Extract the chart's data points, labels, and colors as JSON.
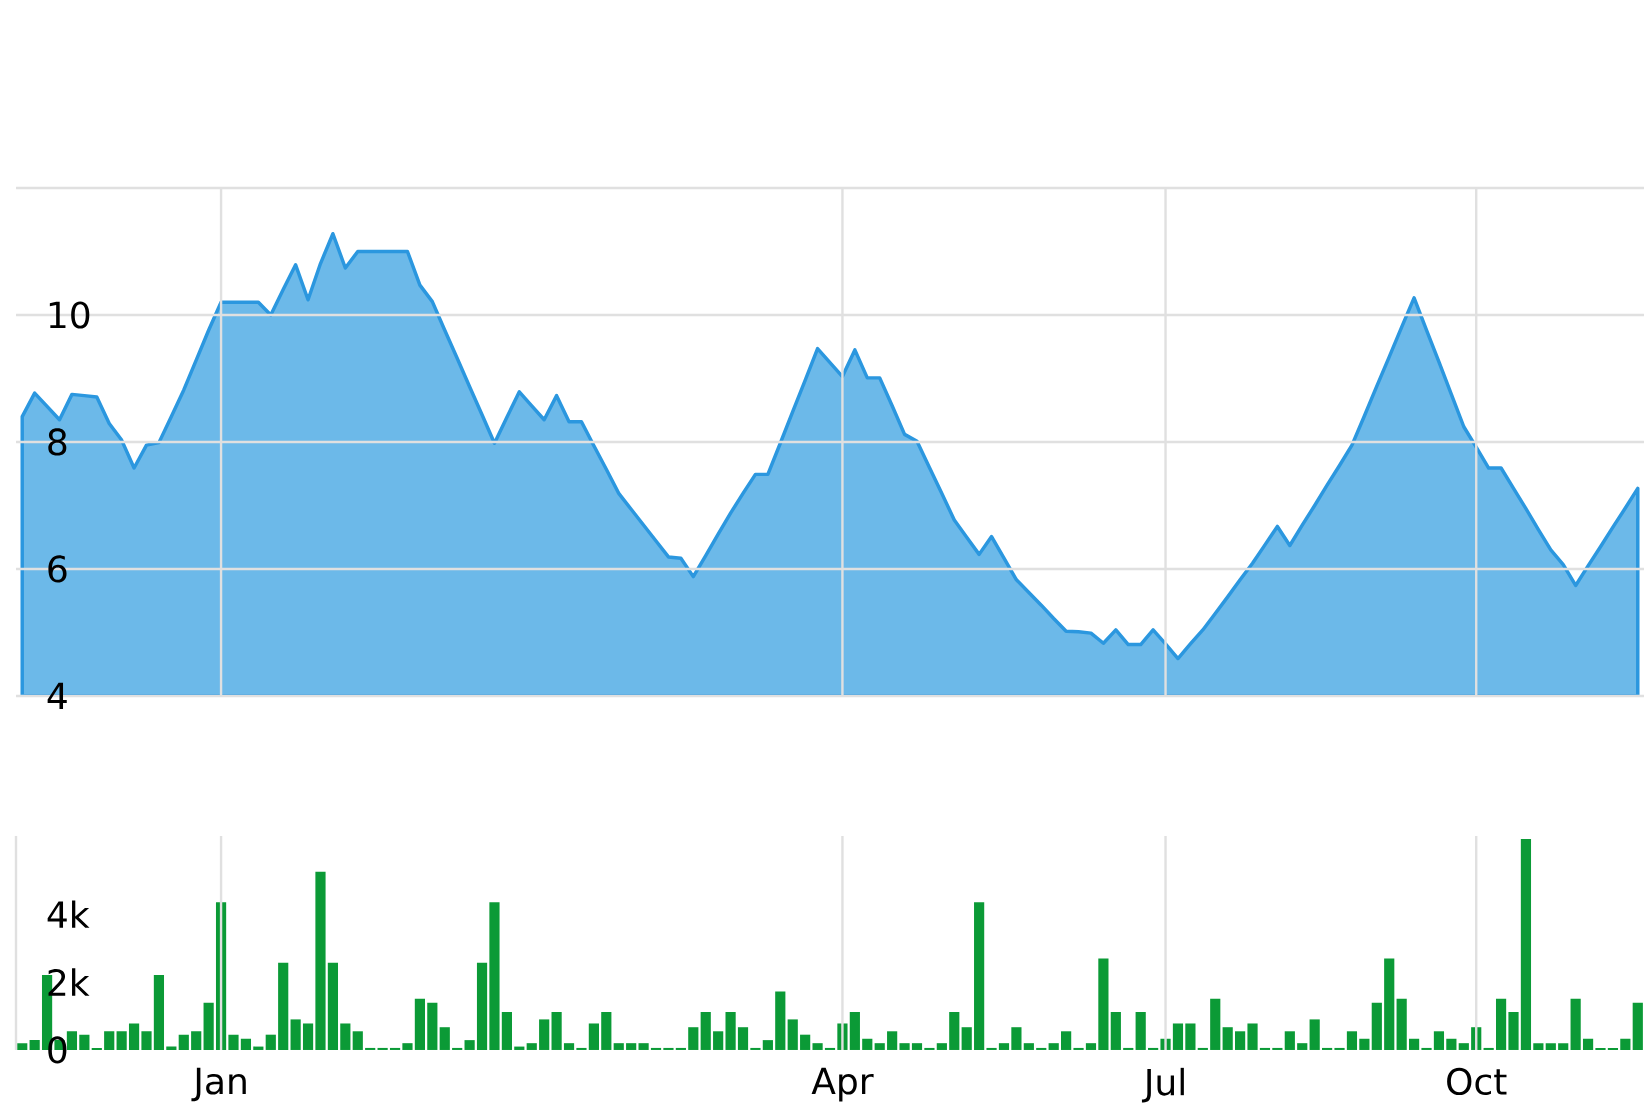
{
  "chart_data": [
    {
      "type": "area",
      "categories": [
        null,
        null,
        null,
        null,
        null,
        null,
        null,
        null,
        null,
        null,
        null,
        null,
        null,
        null,
        null,
        null,
        null,
        null,
        null,
        null,
        null,
        null,
        null,
        null,
        null,
        null,
        null,
        null,
        null,
        null,
        null,
        null,
        null,
        null,
        null,
        null,
        null,
        null,
        null,
        null,
        null,
        null,
        null,
        null,
        null,
        null,
        null,
        null,
        null,
        null,
        null,
        null,
        null,
        null,
        null,
        null,
        null,
        null,
        null,
        null,
        null,
        null,
        null,
        null,
        null,
        null,
        null,
        null,
        null,
        null,
        null,
        null,
        null,
        null,
        null,
        null,
        null,
        null,
        null,
        null,
        null,
        null,
        null,
        null,
        null,
        null,
        null,
        null,
        null,
        null,
        null,
        null,
        null,
        null,
        null,
        null,
        null,
        null,
        null,
        null,
        null,
        null,
        null,
        null,
        null,
        null,
        null,
        null,
        null,
        null,
        null,
        null,
        null,
        null,
        null,
        null,
        null,
        null,
        null,
        null,
        null,
        null,
        null,
        null,
        null,
        null,
        null,
        null,
        null,
        null,
        null
      ],
      "series": [
        {
          "color": "#6cb9e9",
          "values": [
            8.4,
            8.77,
            8.56,
            8.35,
            8.75,
            8.73,
            8.71,
            8.29,
            8.03,
            7.59,
            7.95,
            7.99,
            8.4,
            8.82,
            9.29,
            9.76,
            10.2,
            10.2,
            10.2,
            10.2,
            10.0,
            10.4,
            10.79,
            10.24,
            10.81,
            11.28,
            10.74,
            11.0,
            11.0,
            11.0,
            11.0,
            11.0,
            10.47,
            10.21,
            9.76,
            9.32,
            8.87,
            8.43,
            7.98,
            8.39,
            8.79,
            8.57,
            8.35,
            8.73,
            8.32,
            8.32,
            7.94,
            7.57,
            7.19,
            6.94,
            6.69,
            6.44,
            6.19,
            6.17,
            5.88,
            6.21,
            6.55,
            6.88,
            7.19,
            7.49,
            7.49,
            7.98,
            8.48,
            8.97,
            9.47,
            9.25,
            9.03,
            9.45,
            9.01,
            9.01,
            8.57,
            8.12,
            8.01,
            7.6,
            7.19,
            6.77,
            6.5,
            6.23,
            6.51,
            6.17,
            5.83,
            5.63,
            5.43,
            5.22,
            5.02,
            5.01,
            4.99,
            4.83,
            5.04,
            4.81,
            4.81,
            5.04,
            4.82,
            4.59,
            4.82,
            5.04,
            5.3,
            5.56,
            5.83,
            6.09,
            6.38,
            6.67,
            6.37,
            6.69,
            7.0,
            7.32,
            7.63,
            7.95,
            8.41,
            8.88,
            9.34,
            9.81,
            10.27,
            9.76,
            9.26,
            8.75,
            8.24,
            7.92,
            7.59,
            7.59,
            7.27,
            6.95,
            6.62,
            6.3,
            6.07,
            5.74,
            6.05,
            6.35,
            6.66,
            6.96,
            7.27
          ]
        }
      ],
      "ylim": [
        4,
        12
      ],
      "yticks": [
        4,
        6,
        8,
        10,
        {
          "value": 12,
          "label": null
        }
      ],
      "grid": true,
      "tick_labels": "y"
    },
    {
      "type": "bar",
      "color": "#0b9a36",
      "categories": [
        null,
        null,
        null,
        null,
        null,
        null,
        null,
        null,
        null,
        null,
        null,
        null,
        null,
        null,
        null,
        null,
        "Jan",
        null,
        null,
        null,
        null,
        null,
        null,
        null,
        null,
        null,
        null,
        null,
        null,
        null,
        null,
        null,
        null,
        null,
        null,
        null,
        null,
        null,
        null,
        null,
        null,
        null,
        null,
        null,
        null,
        null,
        null,
        null,
        null,
        null,
        null,
        null,
        null,
        null,
        null,
        null,
        null,
        null,
        null,
        null,
        null,
        null,
        null,
        null,
        null,
        null,
        "Apr",
        null,
        null,
        null,
        null,
        null,
        null,
        null,
        null,
        null,
        null,
        null,
        null,
        null,
        null,
        null,
        null,
        null,
        null,
        null,
        null,
        null,
        null,
        null,
        null,
        null,
        "Jul",
        null,
        null,
        null,
        null,
        null,
        null,
        null,
        null,
        null,
        null,
        null,
        null,
        null,
        null,
        null,
        null,
        null,
        null,
        null,
        null,
        null,
        null,
        null,
        null,
        "Oct",
        null,
        null,
        null,
        null,
        null,
        null,
        null,
        null,
        null,
        null,
        null,
        null,
        null
      ],
      "values": [
        200,
        290,
        2210,
        290,
        550,
        450,
        60,
        550,
        550,
        780,
        550,
        2210,
        100,
        450,
        550,
        1390,
        4350,
        450,
        330,
        100,
        450,
        2570,
        900,
        780,
        5250,
        2570,
        780,
        550,
        60,
        60,
        60,
        200,
        1510,
        1390,
        670,
        60,
        290,
        2570,
        4350,
        1120,
        100,
        200,
        900,
        1120,
        200,
        60,
        780,
        1120,
        200,
        200,
        200,
        60,
        60,
        60,
        670,
        1120,
        550,
        1120,
        670,
        60,
        290,
        1720,
        900,
        450,
        200,
        60,
        780,
        1120,
        330,
        200,
        550,
        200,
        200,
        60,
        200,
        1120,
        670,
        4350,
        60,
        200,
        670,
        200,
        60,
        200,
        550,
        60,
        200,
        2690,
        1120,
        60,
        1120,
        60,
        330,
        780,
        780,
        60,
        1510,
        670,
        550,
        780,
        60,
        60,
        550,
        200,
        900,
        60,
        60,
        550,
        330,
        1390,
        2690,
        1510,
        330,
        60,
        550,
        330,
        200,
        670,
        60,
        1510,
        1120,
        6210,
        200,
        200,
        200,
        1510,
        330,
        60,
        60,
        330,
        1390
      ],
      "ylim": [
        0,
        6300
      ],
      "yticks": [
        0,
        {
          "value": 2000,
          "label": "2k"
        },
        {
          "value": 4000,
          "label": "4k"
        }
      ],
      "grid": "x"
    }
  ]
}
